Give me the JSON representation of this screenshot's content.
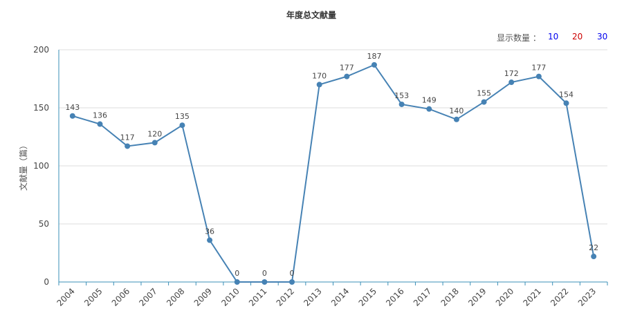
{
  "chart_data": {
    "type": "line",
    "title": "年度总文献量",
    "y_label": "文献量（篇）",
    "categories": [
      "2004",
      "2005",
      "2006",
      "2007",
      "2008",
      "2009",
      "2010",
      "2011",
      "2012",
      "2013",
      "2014",
      "2015",
      "2016",
      "2017",
      "2018",
      "2019",
      "2020",
      "2021",
      "2022",
      "2023"
    ],
    "series": [
      {
        "name": "年度总文献量",
        "color": "#4682b4",
        "values": [
          143,
          136,
          117,
          120,
          135,
          36,
          0,
          0,
          0,
          170,
          177,
          187,
          153,
          149,
          140,
          155,
          172,
          177,
          154,
          22
        ]
      }
    ],
    "ylim": [
      0,
      200
    ],
    "yticks": [
      0,
      50,
      100,
      150,
      200
    ],
    "grid": true
  },
  "controls": {
    "label": "显示数量 ：",
    "options": [
      "10",
      "20",
      "30"
    ]
  }
}
